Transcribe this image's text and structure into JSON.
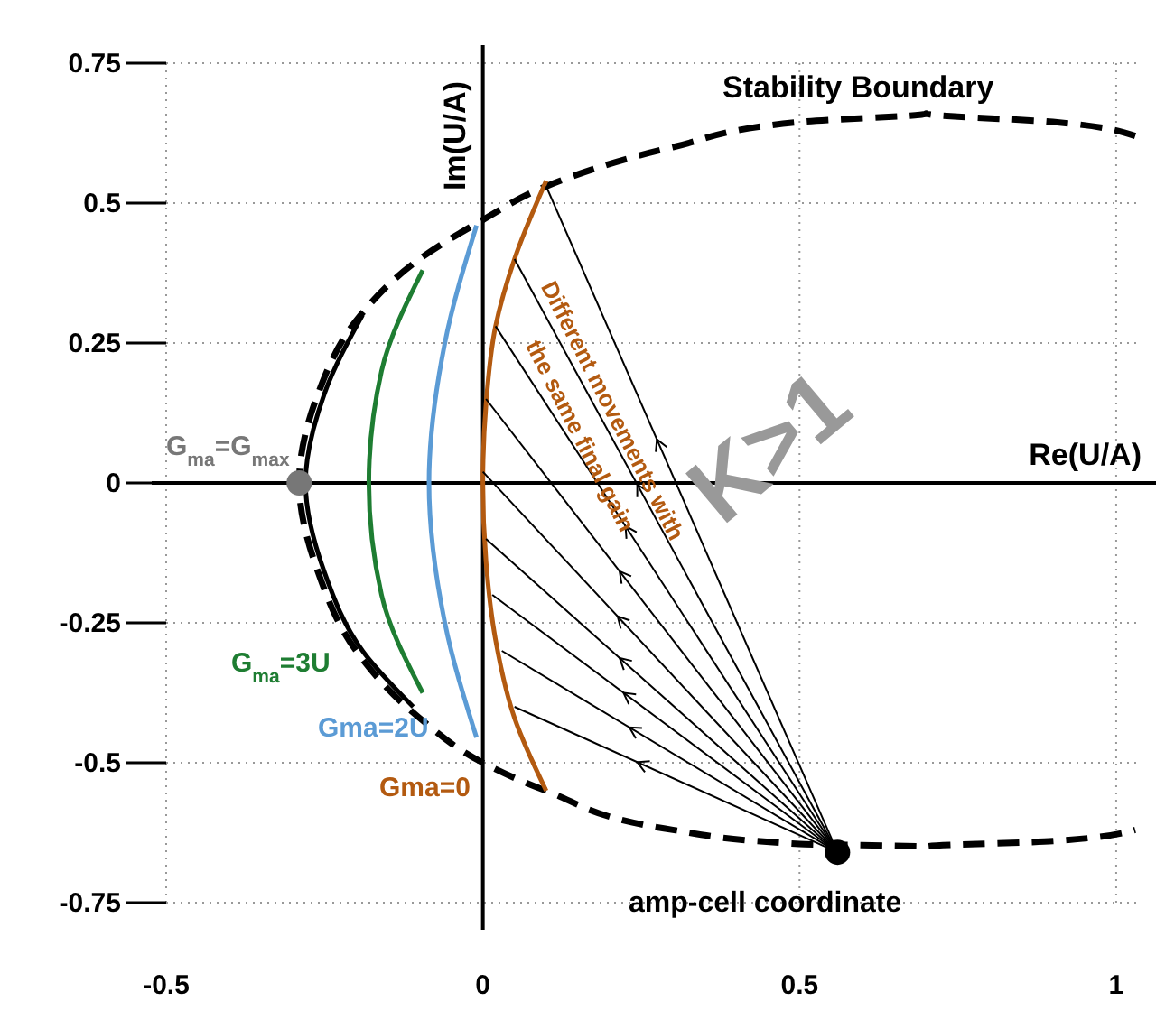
{
  "chart_data": {
    "type": "line",
    "xlabel": "Re(U/A)",
    "ylabel": "Im(U/A)",
    "xlim": [
      -0.5,
      1.04
    ],
    "ylim": [
      -0.75,
      0.75
    ],
    "xticks": [
      -0.5,
      0,
      0.5,
      1
    ],
    "yticks": [
      -0.75,
      -0.5,
      -0.25,
      0,
      0.25,
      0.5,
      0.75
    ],
    "grid": true,
    "series": [
      {
        "color": "#000000",
        "line_style": "dashed",
        "x": [
          1.03,
          0.9,
          0.7,
          0.5,
          0.3,
          0.1,
          0,
          -0.1,
          -0.2,
          -0.26,
          -0.29,
          -0.26,
          -0.2,
          -0.1,
          0,
          0.1,
          0.3,
          0.5,
          0.7,
          0.9,
          1.03
        ],
        "values": [
          0.62,
          0.645,
          0.66,
          0.645,
          0.6,
          0.53,
          0.47,
          0.4,
          0.29,
          0.16,
          0,
          -0.16,
          -0.3,
          -0.42,
          -0.5,
          -0.55,
          -0.62,
          -0.645,
          -0.65,
          -0.64,
          -0.62
        ]
      },
      {
        "color": "#000000",
        "x": [
          -0.19,
          -0.25,
          -0.28,
          -0.25,
          -0.19,
          -0.11
        ],
        "values": [
          0.3,
          0.16,
          0,
          -0.16,
          -0.3,
          -0.4
        ]
      },
      {
        "color": "#1e7d32",
        "x": [
          -0.095,
          -0.16,
          -0.18,
          -0.16,
          -0.095
        ],
        "values": [
          0.38,
          0.2,
          0,
          -0.2,
          -0.375
        ]
      },
      {
        "color": "#5b9bd5",
        "x": [
          -0.01,
          -0.06,
          -0.085,
          -0.06,
          -0.01
        ],
        "values": [
          0.46,
          0.25,
          0,
          -0.25,
          -0.455
        ]
      },
      {
        "color": "#b35a10",
        "x": [
          0.1,
          0.05,
          0.02,
          0.005,
          0,
          0.005,
          0.02,
          0.05,
          0.1
        ],
        "values": [
          0.54,
          0.4,
          0.28,
          0.14,
          0,
          -0.14,
          -0.28,
          -0.42,
          -0.55
        ]
      },
      {
        "color": "#000000",
        "x": [
          0.56,
          0.1
        ],
        "values": [
          -0.66,
          0.53
        ]
      },
      {
        "color": "#000000",
        "x": [
          0.56,
          0.05
        ],
        "values": [
          -0.66,
          0.4
        ]
      },
      {
        "color": "#000000",
        "x": [
          0.56,
          0.02
        ],
        "values": [
          -0.66,
          0.28
        ]
      },
      {
        "color": "#000000",
        "x": [
          0.56,
          0.005
        ],
        "values": [
          -0.66,
          0.15
        ]
      },
      {
        "color": "#000000",
        "x": [
          0.56,
          0
        ],
        "values": [
          -0.66,
          0.02
        ]
      },
      {
        "color": "#000000",
        "x": [
          0.56,
          0.005
        ],
        "values": [
          -0.66,
          -0.1
        ]
      },
      {
        "color": "#000000",
        "x": [
          0.56,
          0.015
        ],
        "values": [
          -0.66,
          -0.2
        ]
      },
      {
        "color": "#000000",
        "x": [
          0.56,
          0.03
        ],
        "values": [
          -0.66,
          -0.3
        ]
      },
      {
        "color": "#000000",
        "x": [
          0.56,
          0.05
        ],
        "values": [
          -0.66,
          -0.4
        ]
      },
      {
        "type": "scatter",
        "x": [
          -0.29,
          0.56
        ],
        "values": [
          0,
          -0.66
        ],
        "colors": [
          "#777777",
          "#000000"
        ]
      }
    ],
    "annotations": [
      "Stability Boundary",
      "G$_{ma}$=G$_{max}$",
      "G$_{ma}$=3U",
      "Gma=2U",
      "Gma=0",
      "amp-cell coordinate",
      "Different movements with",
      "the same final gain",
      "K>1"
    ]
  }
}
